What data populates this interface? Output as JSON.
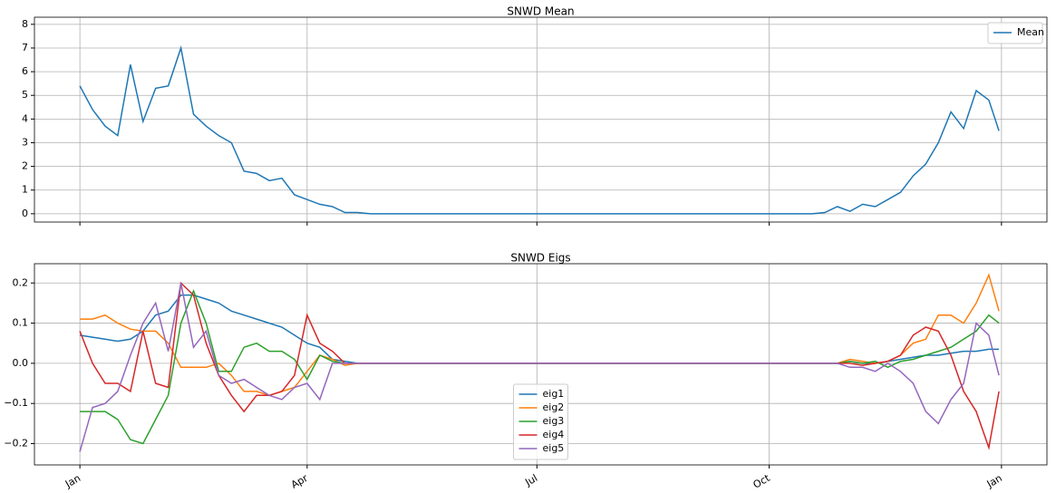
{
  "chart_data": [
    {
      "type": "line",
      "title": "SNWD Mean",
      "legend": "upper right",
      "grid": true,
      "x": [
        0,
        5,
        10,
        15,
        20,
        25,
        30,
        35,
        40,
        45,
        50,
        55,
        60,
        65,
        70,
        75,
        80,
        85,
        90,
        95,
        100,
        105,
        110,
        115,
        120,
        125,
        130,
        135,
        140,
        145,
        150,
        155,
        160,
        165,
        170,
        175,
        180,
        185,
        190,
        195,
        200,
        205,
        210,
        215,
        220,
        225,
        230,
        235,
        240,
        245,
        250,
        255,
        260,
        265,
        270,
        275,
        280,
        285,
        290,
        295,
        300,
        305,
        310,
        315,
        320,
        325,
        330,
        335,
        340,
        345,
        350,
        355,
        360,
        364
      ],
      "xlim": [
        -18,
        383
      ],
      "xticks": [
        0,
        90,
        181,
        273,
        365
      ],
      "ylim": [
        -0.35,
        8.3
      ],
      "yticks": [
        0,
        1,
        2,
        3,
        4,
        5,
        6,
        7,
        8
      ],
      "series": [
        {
          "name": "Mean",
          "color": "#1f77b4",
          "values": [
            5.4,
            4.4,
            3.7,
            3.3,
            6.3,
            3.9,
            5.3,
            5.4,
            7.0,
            4.2,
            3.7,
            3.3,
            3.0,
            1.8,
            1.7,
            1.4,
            1.5,
            0.8,
            0.6,
            0.4,
            0.3,
            0.05,
            0.05,
            0,
            0,
            0,
            0,
            0,
            0,
            0,
            0,
            0,
            0,
            0,
            0,
            0,
            0,
            0,
            0,
            0,
            0,
            0,
            0,
            0,
            0,
            0,
            0,
            0,
            0,
            0,
            0,
            0,
            0,
            0,
            0,
            0,
            0,
            0,
            0,
            0.05,
            0.3,
            0.1,
            0.4,
            0.3,
            0.6,
            0.9,
            1.6,
            2.1,
            3.0,
            4.3,
            3.6,
            5.2,
            4.8,
            3.5
          ]
        }
      ]
    },
    {
      "type": "line",
      "title": "SNWD Eigs",
      "legend": "lower center",
      "grid": true,
      "x": [
        0,
        5,
        10,
        15,
        20,
        25,
        30,
        35,
        40,
        45,
        50,
        55,
        60,
        65,
        70,
        75,
        80,
        85,
        90,
        95,
        100,
        105,
        110,
        115,
        120,
        125,
        130,
        135,
        140,
        145,
        150,
        155,
        160,
        165,
        170,
        175,
        180,
        185,
        190,
        195,
        200,
        205,
        210,
        215,
        220,
        225,
        230,
        235,
        240,
        245,
        250,
        255,
        260,
        265,
        270,
        275,
        280,
        285,
        290,
        295,
        300,
        305,
        310,
        315,
        320,
        325,
        330,
        335,
        340,
        345,
        350,
        355,
        360,
        364
      ],
      "xlim": [
        -18,
        383
      ],
      "xticks": [
        {
          "value": 0,
          "label": "Jan"
        },
        {
          "value": 90,
          "label": "Apr"
        },
        {
          "value": 181,
          "label": "Jul"
        },
        {
          "value": 273,
          "label": "Oct"
        },
        {
          "value": 365,
          "label": "Jan"
        }
      ],
      "ylim": [
        -0.253,
        0.248
      ],
      "yticks": [
        {
          "value": -0.2,
          "label": "−0.2"
        },
        {
          "value": -0.1,
          "label": "−0.1"
        },
        {
          "value": 0,
          "label": "0.0"
        },
        0.1,
        0.2
      ],
      "series": [
        {
          "name": "eig1",
          "color": "#1f77b4",
          "values": [
            0.07,
            0.065,
            0.06,
            0.055,
            0.06,
            0.08,
            0.12,
            0.13,
            0.17,
            0.17,
            0.16,
            0.15,
            0.13,
            0.12,
            0.11,
            0.1,
            0.09,
            0.07,
            0.05,
            0.04,
            0.01,
            0.005,
            0,
            0,
            0,
            0,
            0,
            0,
            0,
            0,
            0,
            0,
            0,
            0,
            0,
            0,
            0,
            0,
            0,
            0,
            0,
            0,
            0,
            0,
            0,
            0,
            0,
            0,
            0,
            0,
            0,
            0,
            0,
            0,
            0,
            0,
            0,
            0,
            0,
            0,
            0,
            0.005,
            0,
            0,
            0.005,
            0.01,
            0.015,
            0.02,
            0.02,
            0.025,
            0.03,
            0.03,
            0.035,
            0.035
          ]
        },
        {
          "name": "eig2",
          "color": "#ff7f0e",
          "values": [
            0.11,
            0.11,
            0.12,
            0.1,
            0.085,
            0.08,
            0.08,
            0.05,
            -0.01,
            -0.01,
            -0.01,
            0,
            -0.03,
            -0.07,
            -0.07,
            -0.08,
            -0.07,
            -0.06,
            -0.02,
            0.02,
            0.01,
            -0.005,
            0,
            0,
            0,
            0,
            0,
            0,
            0,
            0,
            0,
            0,
            0,
            0,
            0,
            0,
            0,
            0,
            0,
            0,
            0,
            0,
            0,
            0,
            0,
            0,
            0,
            0,
            0,
            0,
            0,
            0,
            0,
            0,
            0,
            0,
            0,
            0,
            0,
            0,
            0,
            0.01,
            0.005,
            0,
            0.005,
            0.02,
            0.05,
            0.06,
            0.12,
            0.12,
            0.1,
            0.15,
            0.22,
            0.13
          ]
        },
        {
          "name": "eig3",
          "color": "#2ca02c",
          "values": [
            -0.12,
            -0.12,
            -0.12,
            -0.14,
            -0.19,
            -0.2,
            -0.14,
            -0.08,
            0.1,
            0.18,
            0.1,
            -0.02,
            -0.02,
            0.04,
            0.05,
            0.03,
            0.03,
            0.01,
            -0.04,
            0.02,
            0.005,
            0,
            0,
            0,
            0,
            0,
            0,
            0,
            0,
            0,
            0,
            0,
            0,
            0,
            0,
            0,
            0,
            0,
            0,
            0,
            0,
            0,
            0,
            0,
            0,
            0,
            0,
            0,
            0,
            0,
            0,
            0,
            0,
            0,
            0,
            0,
            0,
            0,
            0,
            0,
            0,
            0.005,
            0,
            0.005,
            -0.01,
            0.005,
            0.01,
            0.02,
            0.03,
            0.04,
            0.06,
            0.08,
            0.12,
            0.1
          ]
        },
        {
          "name": "eig4",
          "color": "#d62728",
          "values": [
            0.08,
            0,
            -0.05,
            -0.05,
            -0.07,
            0.08,
            -0.05,
            -0.06,
            0.2,
            0.17,
            0.05,
            -0.03,
            -0.08,
            -0.12,
            -0.08,
            -0.08,
            -0.07,
            -0.03,
            0.12,
            0.05,
            0.03,
            0,
            0,
            0,
            0,
            0,
            0,
            0,
            0,
            0,
            0,
            0,
            0,
            0,
            0,
            0,
            0,
            0,
            0,
            0,
            0,
            0,
            0,
            0,
            0,
            0,
            0,
            0,
            0,
            0,
            0,
            0,
            0,
            0,
            0,
            0,
            0,
            0,
            0,
            0,
            0,
            0,
            -0.005,
            0,
            0.005,
            0.02,
            0.07,
            0.09,
            0.08,
            0.02,
            -0.07,
            -0.12,
            -0.21,
            -0.07
          ]
        },
        {
          "name": "eig5",
          "color": "#9467bd",
          "values": [
            -0.22,
            -0.11,
            -0.1,
            -0.07,
            0.02,
            0.1,
            0.15,
            0.03,
            0.2,
            0.04,
            0.08,
            -0.03,
            -0.05,
            -0.04,
            -0.06,
            -0.08,
            -0.09,
            -0.06,
            -0.05,
            -0.09,
            0,
            0,
            0,
            0,
            0,
            0,
            0,
            0,
            0,
            0,
            0,
            0,
            0,
            0,
            0,
            0,
            0,
            0,
            0,
            0,
            0,
            0,
            0,
            0,
            0,
            0,
            0,
            0,
            0,
            0,
            0,
            0,
            0,
            0,
            0,
            0,
            0,
            0,
            0,
            0,
            0,
            -0.01,
            -0.01,
            -0.02,
            0,
            -0.02,
            -0.05,
            -0.12,
            -0.15,
            -0.09,
            -0.05,
            0.1,
            0.07,
            -0.03
          ]
        }
      ]
    }
  ]
}
